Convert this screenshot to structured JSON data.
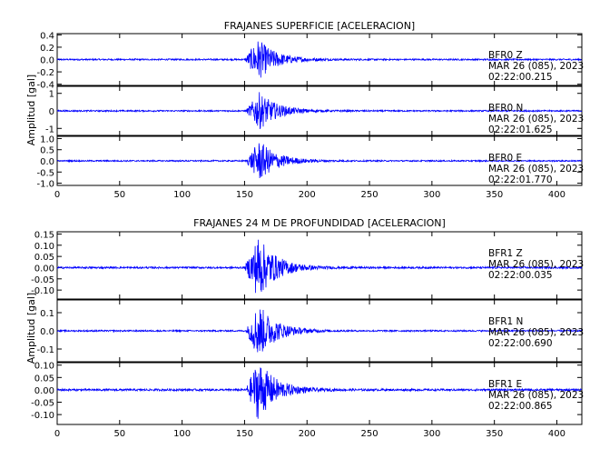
{
  "chart_data": [
    {
      "type": "line",
      "title": "FRAJANES SUPERFICIE [ACELERACION]",
      "ylabel": "Amplitud [gal]",
      "xlim": [
        0,
        420
      ],
      "xticks": [
        "0",
        "50",
        "100",
        "150",
        "200",
        "250",
        "300",
        "350",
        "400"
      ],
      "line_color": "#0000ff",
      "panels": [
        {
          "name": "BFR0 Z",
          "info": [
            "BFR0  Z",
            "MAR 26 (085), 2023",
            "02:22:00.215"
          ],
          "ylim": [
            -0.42,
            0.42
          ],
          "yticks": [
            0.4,
            0.2,
            0.0,
            -0.2,
            -0.4
          ],
          "ytick_labels": [
            "0.4",
            "0.2",
            "0.0",
            "-0.2",
            "-0.4"
          ],
          "event_start": 150,
          "event_peak_time": 161,
          "event_peak_amplitude": 0.33,
          "noise_level": 0.012
        },
        {
          "name": "BFR0 N",
          "info": [
            "BFR0  N",
            "MAR 26 (085), 2023",
            "02:22:01.625"
          ],
          "ylim": [
            -1.4,
            1.4
          ],
          "yticks": [
            1,
            0,
            -1
          ],
          "ytick_labels": [
            "1",
            "0",
            "-1"
          ],
          "event_start": 151,
          "event_peak_time": 162,
          "event_peak_amplitude": 1.05,
          "noise_level": 0.04
        },
        {
          "name": "BFR0 E",
          "info": [
            "BFR0  E",
            "MAR 26 (085), 2023",
            "02:22:01.770"
          ],
          "ylim": [
            -1.1,
            1.1
          ],
          "yticks": [
            1.0,
            0.5,
            0.0,
            -0.5,
            -1.0
          ],
          "ytick_labels": [
            "1.0",
            "0.5",
            "0.0",
            "-0.5",
            "-1.0"
          ],
          "event_start": 151,
          "event_peak_time": 162,
          "event_peak_amplitude": 0.9,
          "noise_level": 0.03
        }
      ]
    },
    {
      "type": "line",
      "title": "FRAJANES 24 M DE PROFUNDIDAD [ACELERACION]",
      "ylabel": "Amplitud [gal]",
      "xlim": [
        0,
        420
      ],
      "xticks": [
        "0",
        "50",
        "100",
        "150",
        "200",
        "250",
        "300",
        "350",
        "400"
      ],
      "line_color": "#0000ff",
      "panels": [
        {
          "name": "BFR1 Z",
          "info": [
            "BFR1  Z",
            "MAR 26 (085), 2023",
            "02:22:00.035"
          ],
          "ylim": [
            -0.14,
            0.16
          ],
          "yticks": [
            0.15,
            0.1,
            0.05,
            0.0,
            -0.05,
            -0.1
          ],
          "ytick_labels": [
            "0.15",
            "0.10",
            "0.05",
            "0.00",
            "-0.05",
            "-0.10"
          ],
          "event_start": 150,
          "event_peak_time": 161,
          "event_peak_amplitude": 0.14,
          "noise_level": 0.004
        },
        {
          "name": "BFR1 N",
          "info": [
            "BFR1  N",
            "MAR 26 (085), 2023",
            "02:22:00.690"
          ],
          "ylim": [
            -0.17,
            0.17
          ],
          "yticks": [
            0.1,
            0.0,
            -0.1
          ],
          "ytick_labels": [
            "0.1",
            "0.0",
            "-0.1"
          ],
          "event_start": 151,
          "event_peak_time": 161,
          "event_peak_amplitude": 0.15,
          "noise_level": 0.004
        },
        {
          "name": "BFR1 E",
          "info": [
            "BFR1  E",
            "MAR 26 (085), 2023",
            "02:22:00.865"
          ],
          "ylim": [
            -0.14,
            0.11
          ],
          "yticks": [
            0.1,
            0.05,
            0.0,
            -0.05,
            -0.1
          ],
          "ytick_labels": [
            "0.10",
            "0.05",
            "0.00",
            "-0.05",
            "-0.10"
          ],
          "event_start": 151,
          "event_peak_time": 161,
          "event_peak_amplitude": 0.12,
          "noise_level": 0.004
        }
      ]
    }
  ]
}
